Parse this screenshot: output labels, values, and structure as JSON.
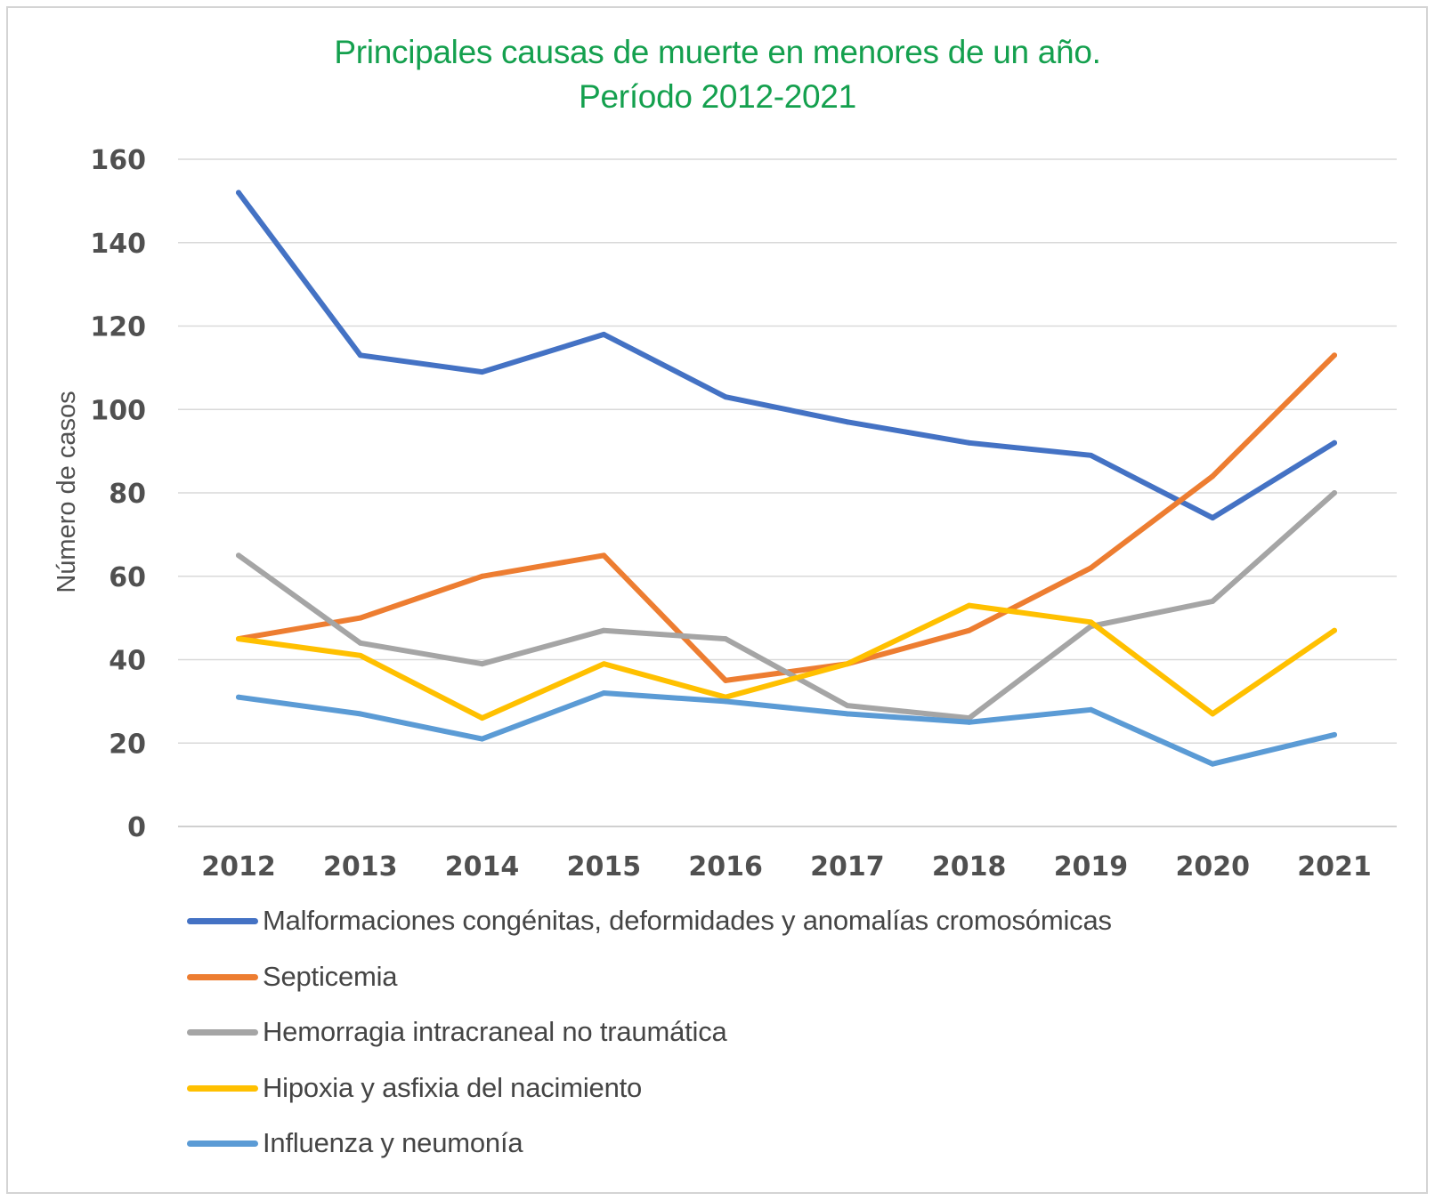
{
  "chart_data": {
    "type": "line",
    "title": "Principales causas de muerte en menores de un año.",
    "subtitle": "Período 2012-2021",
    "xlabel": "",
    "ylabel": "Número de casos",
    "ylim": [
      0,
      160
    ],
    "yticks": [
      0,
      20,
      40,
      60,
      80,
      100,
      120,
      140,
      160
    ],
    "grid": true,
    "legend_position": "bottom",
    "categories": [
      "2012",
      "2013",
      "2014",
      "2015",
      "2016",
      "2017",
      "2018",
      "2019",
      "2020",
      "2021"
    ],
    "series": [
      {
        "name": "Malformaciones congénitas, deformidades y anomalías cromosómicas",
        "color": "#4472C4",
        "values": [
          152,
          113,
          109,
          118,
          103,
          97,
          92,
          89,
          74,
          92
        ]
      },
      {
        "name": "Septicemia",
        "color": "#ED7D31",
        "values": [
          45,
          50,
          60,
          65,
          35,
          39,
          47,
          62,
          84,
          113
        ]
      },
      {
        "name": "Hemorragia intracraneal no traumática",
        "color": "#A5A5A5",
        "values": [
          65,
          44,
          39,
          47,
          45,
          29,
          26,
          48,
          54,
          80
        ]
      },
      {
        "name": "Hipoxia y asfixia del nacimiento",
        "color": "#FFC000",
        "values": [
          45,
          41,
          26,
          39,
          31,
          39,
          53,
          49,
          27,
          47
        ]
      },
      {
        "name": "Influenza y neumonía",
        "color": "#5B9BD5",
        "values": [
          31,
          27,
          21,
          32,
          30,
          27,
          25,
          28,
          15,
          22
        ]
      }
    ]
  },
  "colors": {
    "title": "#14a04e",
    "gridline": "#d9d9d9",
    "axis_text": "#505050"
  }
}
